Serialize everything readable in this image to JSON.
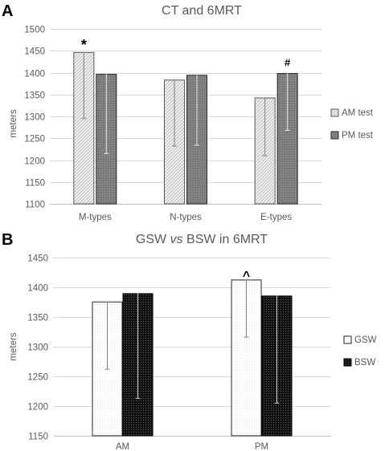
{
  "panels": [
    {
      "letter": "A",
      "chart_data": {
        "type": "bar",
        "title": "CT and 6MRT",
        "ylabel": "meters",
        "xlabel": "",
        "ylim": [
          1100,
          1500
        ],
        "yticks": [
          1100,
          1150,
          1200,
          1250,
          1300,
          1350,
          1400,
          1450,
          1500
        ],
        "categories": [
          "M-types",
          "N-types",
          "E-types"
        ],
        "series": [
          {
            "name": "AM test",
            "values": [
              1447,
              1384,
              1343
            ],
            "error_low": [
              1295,
              1232,
              1210
            ],
            "pattern": "diagonal-hatch",
            "color": "#eeeeee"
          },
          {
            "name": "PM test",
            "values": [
              1397,
              1395,
              1399
            ],
            "error_low": [
              1215,
              1234,
              1268
            ],
            "pattern": "dotted-dark",
            "color": "#7f7f7f"
          }
        ],
        "annotations": [
          {
            "text": "*",
            "category": 0,
            "series": 0,
            "value": 1463
          },
          {
            "text": "#",
            "category": 2,
            "series": 1,
            "value": 1415
          }
        ],
        "legend": "right",
        "grid": true
      }
    },
    {
      "letter": "B",
      "chart_data": {
        "type": "bar",
        "title_parts": [
          "GSW ",
          "vs",
          " BSW in 6MRT"
        ],
        "ylabel": "meters",
        "xlabel": "",
        "ylim": [
          1150,
          1450
        ],
        "yticks": [
          1150,
          1200,
          1250,
          1300,
          1350,
          1400,
          1450
        ],
        "categories": [
          "AM",
          "PM"
        ],
        "series": [
          {
            "name": "GSW",
            "values": [
              1376,
              1413
            ],
            "error_low": [
              1262,
              1316
            ],
            "pattern": "dotted-white",
            "color": "#ffffff"
          },
          {
            "name": "BSW",
            "values": [
              1390,
              1386
            ],
            "error_low": [
              1213,
              1205
            ],
            "pattern": "dotted-black",
            "color": "#111111"
          }
        ],
        "annotations": [
          {
            "text": "^",
            "category": 1,
            "series": 0,
            "value": 1426
          }
        ],
        "legend": "right",
        "grid": true
      }
    }
  ]
}
